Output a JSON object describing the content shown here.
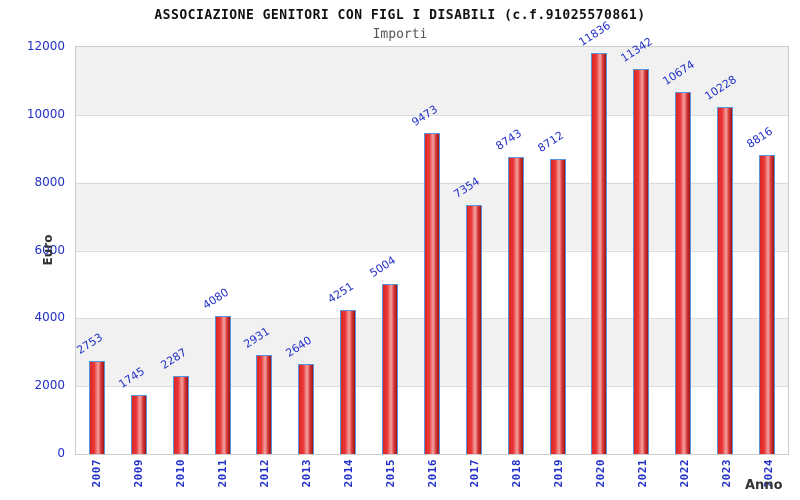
{
  "chart": {
    "title": "ASSOCIAZIONE GENITORI CON FIGL I DISABILI (c.f.91025570861)",
    "subtitle": "Importi",
    "ylabel": "Euro",
    "xlabel": "Anno"
  },
  "chart_data": {
    "type": "bar",
    "title": "ASSOCIAZIONE GENITORI CON FIGL I DISABILI (c.f.91025570861)",
    "subtitle": "Importi",
    "xlabel": "Anno",
    "ylabel": "Euro",
    "categories": [
      "2007",
      "2009",
      "2010",
      "2011",
      "2012",
      "2013",
      "2014",
      "2015",
      "2016",
      "2017",
      "2018",
      "2019",
      "2020",
      "2021",
      "2022",
      "2023",
      "2024"
    ],
    "values": [
      2753,
      1745,
      2287,
      4080,
      2931,
      2640,
      4251,
      5004,
      9473,
      7354,
      8743,
      8712,
      11836,
      11342,
      10674,
      10228,
      8816
    ],
    "ylim": [
      0,
      12000
    ],
    "y_ticks": [
      0,
      2000,
      4000,
      6000,
      8000,
      10000,
      12000
    ],
    "grid": "alternating horizontal gray/white bands",
    "legend_position": "none",
    "bar_value_labels": "rotated -33deg above each bar",
    "colors": {
      "bar_fill": "#e93636",
      "bar_highlight": "#f5a3a3",
      "bar_border": "#5596dd",
      "tick_text": "#2230c8",
      "band_gray": "#f1f1f1",
      "axis_title_text": "#333333",
      "title_text": "#111111",
      "subtitle_text": "#555555"
    }
  }
}
